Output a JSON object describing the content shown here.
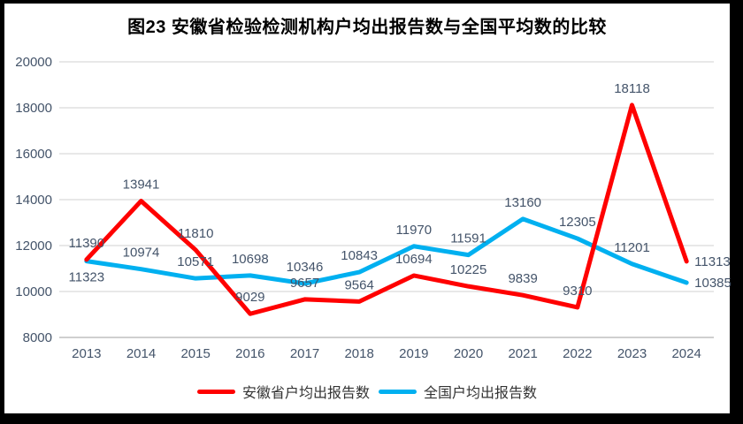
{
  "chart_data": {
    "type": "line",
    "title": "图23 安徽省检验检测机构户均出报告数与全国平均数的比较",
    "categories": [
      "2013",
      "2014",
      "2015",
      "2016",
      "2017",
      "2018",
      "2019",
      "2020",
      "2021",
      "2022",
      "2023",
      "2024"
    ],
    "series": [
      {
        "id": "anhui",
        "name": "安徽省户均出报告数",
        "color": "#FF0000",
        "values": [
          11390,
          13941,
          11810,
          9029,
          9657,
          9564,
          10694,
          10225,
          9839,
          9310,
          18118,
          11313
        ],
        "label_placement": [
          "above",
          "above",
          "above",
          "above",
          "above",
          "above",
          "above",
          "above",
          "above",
          "above",
          "above",
          "right"
        ]
      },
      {
        "id": "national",
        "name": "全国户均出报告数",
        "color": "#00B0F0",
        "values": [
          11323,
          10974,
          10571,
          10698,
          10346,
          10843,
          11970,
          11591,
          13160,
          12305,
          11201,
          10385
        ],
        "label_placement": [
          "below",
          "above",
          "above",
          "above",
          "above",
          "above",
          "above",
          "above",
          "above",
          "above",
          "above",
          "right"
        ]
      }
    ],
    "ylim": [
      8000,
      20000
    ],
    "yticks": [
      20000,
      18000,
      16000,
      14000,
      12000,
      10000,
      8000
    ],
    "grid": true,
    "data_labels": true,
    "legend_position": "bottom"
  },
  "colors": {
    "anhui_red": "#FF0000",
    "national_blue": "#00B0F0",
    "gridline": "#D9D9D9",
    "axis_line": "#BFBFBF",
    "tick_label": "#44546A",
    "data_label": "#44546A",
    "frame_bg": "#FFFFFF",
    "page_bg": "#000000"
  }
}
